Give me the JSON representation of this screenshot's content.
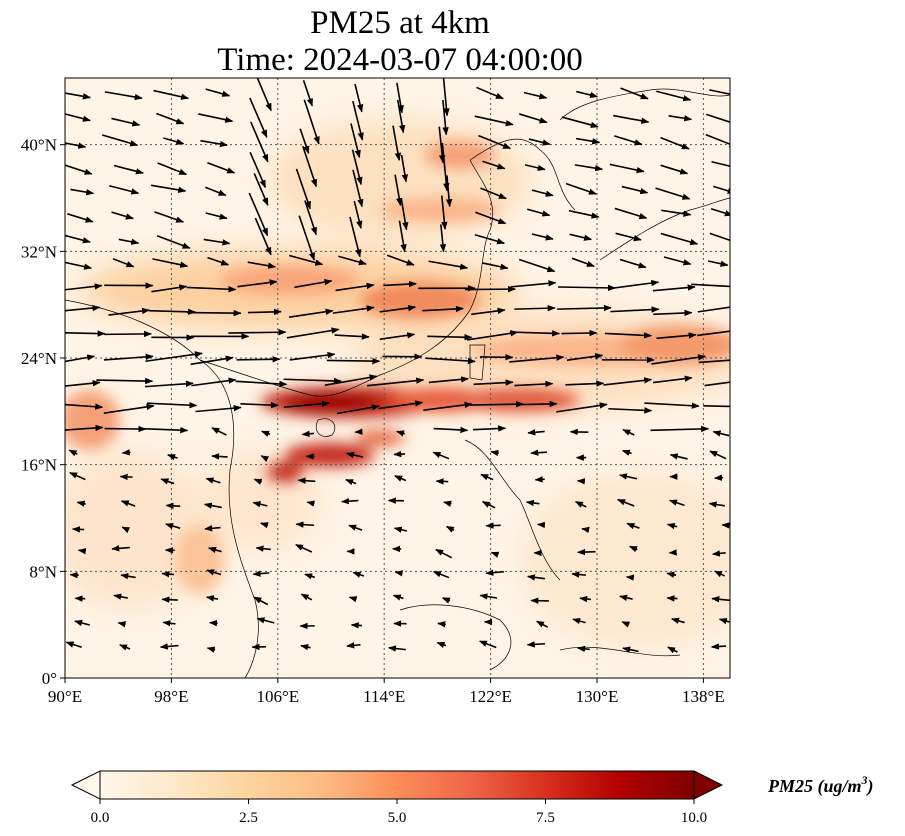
{
  "title": {
    "line1": "PM25 at 4km",
    "line2": "Time: 2024-03-07 04:00:00"
  },
  "map": {
    "variable": "PM25",
    "level": "4km",
    "lon_range": [
      90,
      140
    ],
    "lat_range": [
      0,
      45
    ],
    "lat_ticks": [
      {
        "value": 0,
        "label": "0°"
      },
      {
        "value": 8,
        "label": "8°N"
      },
      {
        "value": 16,
        "label": "16°N"
      },
      {
        "value": 24,
        "label": "24°N"
      },
      {
        "value": 32,
        "label": "32°N"
      },
      {
        "value": 40,
        "label": "40°N"
      }
    ],
    "lon_ticks": [
      {
        "value": 90,
        "label": "90°E"
      },
      {
        "value": 98,
        "label": "98°E"
      },
      {
        "value": 106,
        "label": "106°E"
      },
      {
        "value": 114,
        "label": "114°E"
      },
      {
        "value": 122,
        "label": "122°E"
      },
      {
        "value": 130,
        "label": "130°E"
      },
      {
        "value": 138,
        "label": "138°E"
      }
    ],
    "gridlines": true,
    "wind_vectors": true
  },
  "colorbar": {
    "label": "PM25 (ug/m",
    "label_superscript": "3",
    "label_close": ")",
    "min": 0,
    "max": 10,
    "ticks": [
      "0.0",
      "2.5",
      "5.0",
      "7.5",
      "10.0"
    ],
    "extend": "both",
    "colormap": "OrRd",
    "colors": [
      "#fff7ec",
      "#fee8c8",
      "#fdd49e",
      "#fdbb84",
      "#fc8d59",
      "#ef6548",
      "#d7301f",
      "#b30000",
      "#7f0000"
    ]
  },
  "colors": {
    "background": "#ffffff",
    "axis": "#000000",
    "grid": "#555555",
    "arrow": "#000000"
  }
}
